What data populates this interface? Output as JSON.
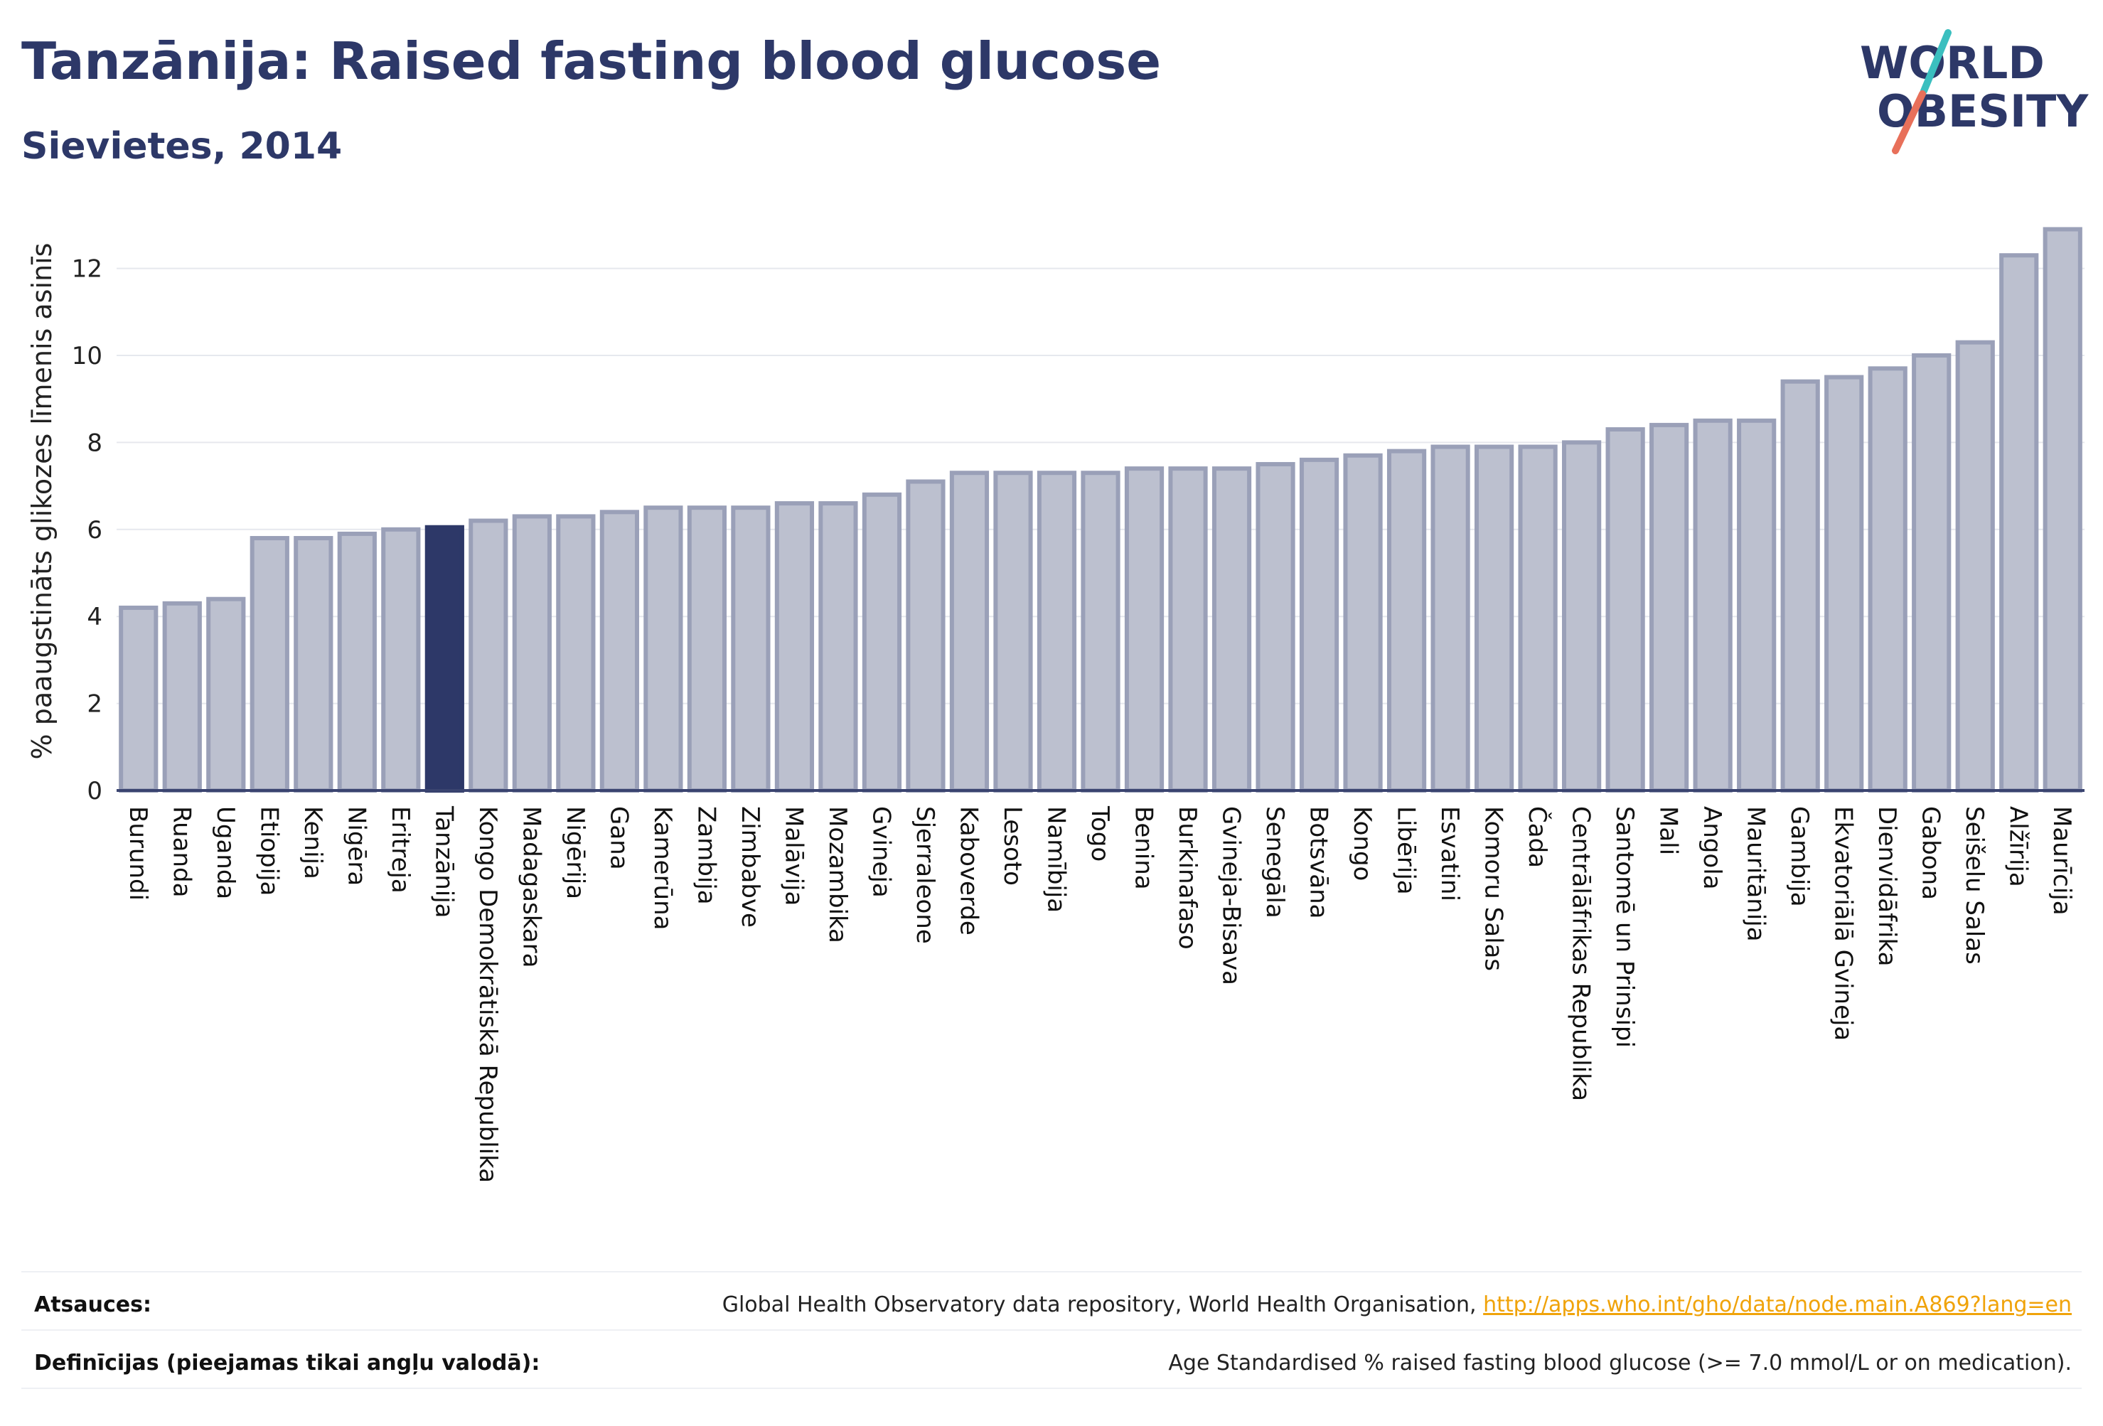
{
  "header": {
    "title": "Tanzānija: Raised fasting blood glucose",
    "subtitle": "Sievietes, 2014"
  },
  "logo": {
    "line1": "WORLD",
    "line2": "OBESITY",
    "slash_top_color": "#3bbfbf",
    "slash_bottom_color": "#e8705a"
  },
  "colors": {
    "bar": "#bcc0cf",
    "bar_edge": "#9aa0b8",
    "highlight": "#2d3868",
    "axis": "#3a4470"
  },
  "chart_data": {
    "type": "bar",
    "ylabel": "% paaugstināts glikozes līmenis asinīs",
    "ylim": [
      0,
      13.3
    ],
    "yticks": [
      0,
      2,
      4,
      6,
      8,
      10,
      12
    ],
    "grid": true,
    "highlight": "Tanzānija",
    "categories": [
      "Burundi",
      "Ruanda",
      "Uganda",
      "Etiopija",
      "Kenija",
      "Nigēra",
      "Eritreja",
      "Tanzānija",
      "Kongo Demokrātiskā Republika",
      "Madagaskara",
      "Nigērija",
      "Gana",
      "Kamerūna",
      "Zambija",
      "Zimbabve",
      "Malāvija",
      "Mozambika",
      "Gvineja",
      "Sjerraleone",
      "Kaboverde",
      "Lesoto",
      "Namībija",
      "Togo",
      "Benina",
      "Burkinafaso",
      "Gvineja-Bisava",
      "Senegāla",
      "Botsvāna",
      "Kongo",
      "Libērija",
      "Esvatini",
      "Komoru Salas",
      "Čada",
      "Centrālāfrikas Republika",
      "Santomē un Prinsipi",
      "Mali",
      "Angola",
      "Mauritānija",
      "Gambija",
      "Ekvatoriālā Gvineja",
      "Dienvidāfrika",
      "Gabona",
      "Seišelu Salas",
      "Alžīrija",
      "Maurīcija"
    ],
    "values": [
      4.2,
      4.3,
      4.4,
      5.8,
      5.8,
      5.9,
      6.0,
      6.05,
      6.2,
      6.3,
      6.3,
      6.4,
      6.5,
      6.5,
      6.5,
      6.6,
      6.6,
      6.8,
      7.1,
      7.3,
      7.3,
      7.3,
      7.3,
      7.4,
      7.4,
      7.4,
      7.5,
      7.6,
      7.7,
      7.8,
      7.9,
      7.9,
      7.9,
      8.0,
      8.3,
      8.4,
      8.5,
      8.5,
      9.4,
      9.5,
      9.7,
      10.0,
      10.3,
      12.3,
      12.9
    ]
  },
  "footer": {
    "sources_label": "Atsauces:",
    "sources_text": "Global Health Observatory data repository, World Health Organisation,",
    "sources_link": "http://apps.who.int/gho/data/node.main.A869?lang=en",
    "definitions_label": "Definīcijas (pieejamas tikai angļu valodā):",
    "definitions_text": "Age Standardised % raised fasting blood glucose (>= 7.0 mmol/L or on medication)."
  }
}
